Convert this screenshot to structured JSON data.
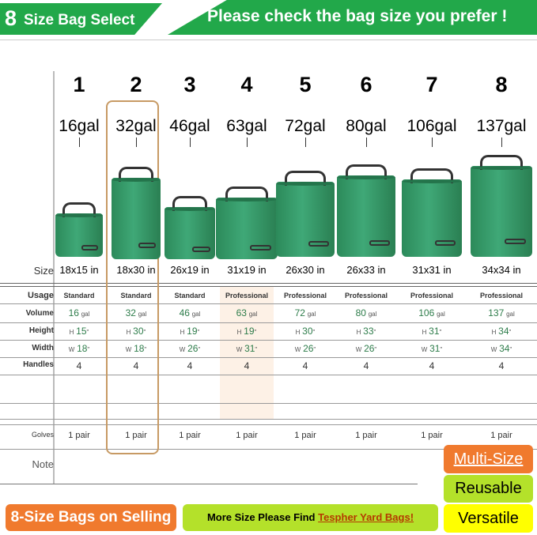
{
  "header": {
    "left_title_number": "8",
    "left_title": "Size Bag Select",
    "right_title": "Please check the bag size you prefer !"
  },
  "row_labels": {
    "size": "Size",
    "usage": "Usage",
    "volume": "Volume",
    "height": "Height",
    "width": "Width",
    "handles": "Handles",
    "gloves": "Golves",
    "note": "Note"
  },
  "units": {
    "volume": "gal",
    "inch": "\"",
    "height_prefix": "H",
    "width_prefix": "W"
  },
  "selected_index": 1,
  "colors": {
    "green": "#22a84a",
    "orange": "#f07a2e",
    "lime": "#b4e12a",
    "yellow": "#ffff00",
    "highlight": "#c79a64"
  },
  "bags": [
    {
      "number": "1",
      "gal_label": "16gal",
      "size": "18x15 in",
      "usage": "Standard",
      "volume": "16",
      "height": "15",
      "width": "18",
      "handles": "4",
      "gloves": "1 pair"
    },
    {
      "number": "2",
      "gal_label": "32gal",
      "size": "18x30 in",
      "usage": "Standard",
      "volume": "32",
      "height": "30",
      "width": "18",
      "handles": "4",
      "gloves": "1 pair"
    },
    {
      "number": "3",
      "gal_label": "46gal",
      "size": "26x19 in",
      "usage": "Standard",
      "volume": "46",
      "height": "19",
      "width": "26",
      "handles": "4",
      "gloves": "1 pair"
    },
    {
      "number": "4",
      "gal_label": "63gal",
      "size": "31x19 in",
      "usage": "Professional",
      "volume": "63",
      "height": "19",
      "width": "31",
      "handles": "4",
      "gloves": "1 pair"
    },
    {
      "number": "5",
      "gal_label": "72gal",
      "size": "26x30 in",
      "usage": "Professional",
      "volume": "72",
      "height": "30",
      "width": "26",
      "handles": "4",
      "gloves": "1 pair"
    },
    {
      "number": "6",
      "gal_label": "80gal",
      "size": "26x33 in",
      "usage": "Professional",
      "volume": "80",
      "height": "33",
      "width": "26",
      "handles": "4",
      "gloves": "1 pair"
    },
    {
      "number": "7",
      "gal_label": "106gal",
      "size": "31x31 in",
      "usage": "Professional",
      "volume": "106",
      "height": "31",
      "width": "31",
      "handles": "4",
      "gloves": "1 pair"
    },
    {
      "number": "8",
      "gal_label": "137gal",
      "size": "34x34 in",
      "usage": "Professional",
      "volume": "137",
      "height": "34",
      "width": "34",
      "handles": "4",
      "gloves": "1 pair"
    }
  ],
  "footer": {
    "selling": "8-Size Bags on Selling",
    "more_prefix": "More Size Please Find",
    "more_link": "Tespher Yard Bags!",
    "badges": [
      "Multi-Size",
      "Reusable",
      "Versatile"
    ]
  }
}
